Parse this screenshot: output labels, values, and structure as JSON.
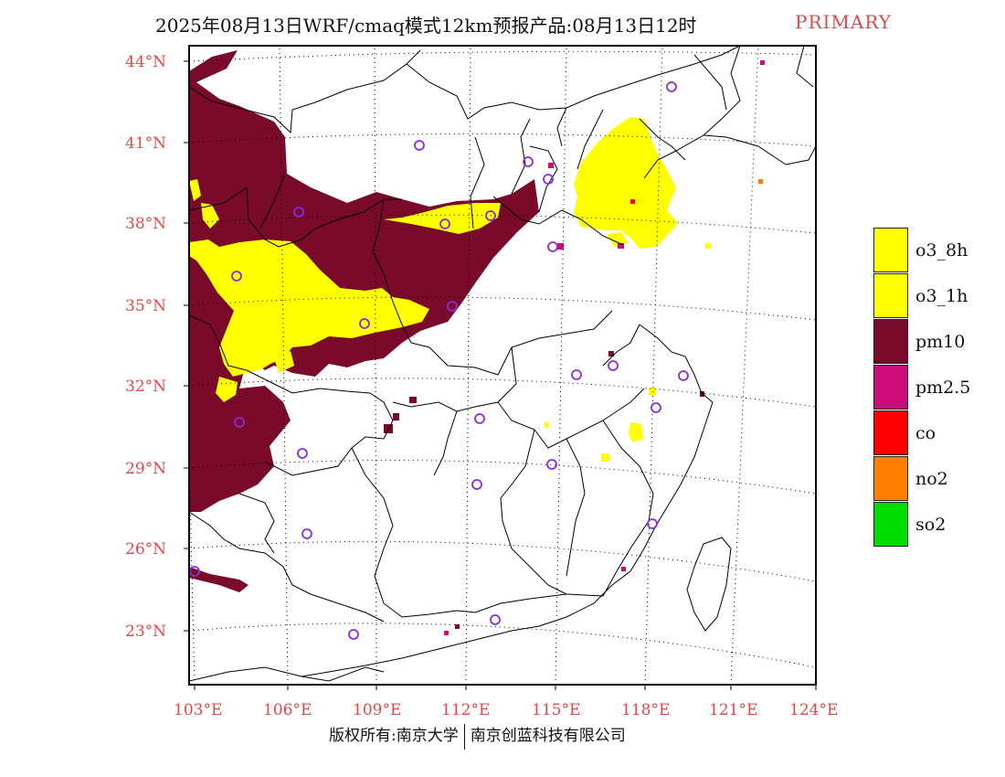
{
  "header": {
    "title": "2025年08月13日WRF/cmaq模式12km预报产品:08月13日12时",
    "tag": "PRIMARY"
  },
  "map": {
    "lat_labels": [
      "44°N",
      "41°N",
      "38°N",
      "35°N",
      "32°N",
      "29°N",
      "26°N",
      "23°N"
    ],
    "lon_labels": [
      "103°E",
      "106°E",
      "109°E",
      "112°E",
      "115°E",
      "118°E",
      "121°E",
      "124°E"
    ],
    "label_color": "#e04848"
  },
  "legend": {
    "items": [
      {
        "label": "o3_8h",
        "color": "#ffff00"
      },
      {
        "label": "o3_1h",
        "color": "#ffff00"
      },
      {
        "label": "pm10",
        "color": "#7a0a2a"
      },
      {
        "label": "pm2.5",
        "color": "#cc0c7a"
      },
      {
        "label": "co",
        "color": "#ff0000"
      },
      {
        "label": "no2",
        "color": "#ff7f00"
      },
      {
        "label": "so2",
        "color": "#00dd00"
      }
    ]
  },
  "footer": {
    "left": "版权所有:南京大学",
    "right": "南京创蓝科技有限公司"
  }
}
